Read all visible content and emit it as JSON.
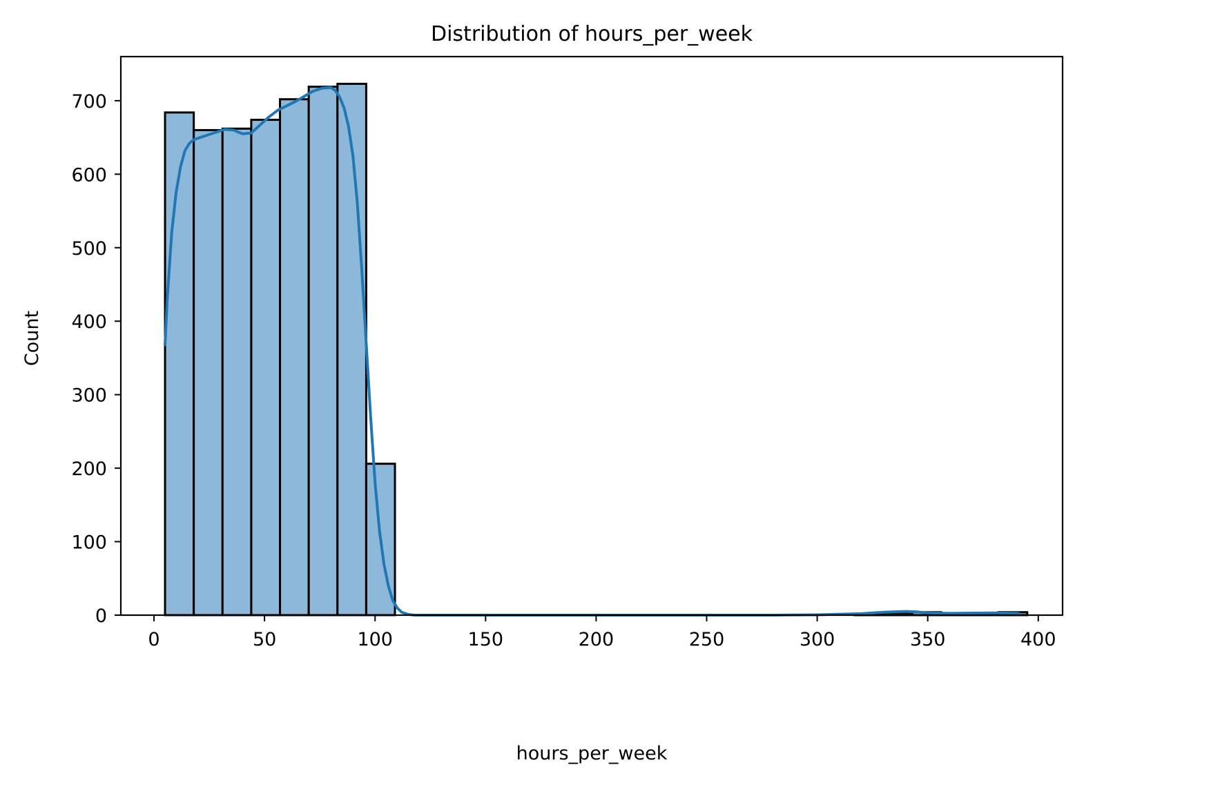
{
  "chart_data": {
    "type": "bar",
    "title": "Distribution of hours_per_week",
    "xlabel": "hours_per_week",
    "ylabel": "Count",
    "xlim": [
      -15,
      411
    ],
    "ylim": [
      0,
      760
    ],
    "xticks": [
      0,
      50,
      100,
      150,
      200,
      250,
      300,
      350,
      400
    ],
    "yticks": [
      0,
      100,
      200,
      300,
      400,
      500,
      600,
      700
    ],
    "grid": false,
    "histogram_bins": [
      {
        "x0": 5,
        "x1": 18,
        "count": 684
      },
      {
        "x0": 18,
        "x1": 31,
        "count": 660
      },
      {
        "x0": 31,
        "x1": 44,
        "count": 662
      },
      {
        "x0": 44,
        "x1": 57,
        "count": 674
      },
      {
        "x0": 57,
        "x1": 70,
        "count": 702
      },
      {
        "x0": 70,
        "x1": 83,
        "count": 719
      },
      {
        "x0": 83,
        "x1": 96,
        "count": 723
      },
      {
        "x0": 96,
        "x1": 109,
        "count": 206
      },
      {
        "x0": 109,
        "x1": 122,
        "count": 0
      },
      {
        "x0": 122,
        "x1": 135,
        "count": 0
      },
      {
        "x0": 135,
        "x1": 148,
        "count": 0
      },
      {
        "x0": 148,
        "x1": 161,
        "count": 0
      },
      {
        "x0": 161,
        "x1": 174,
        "count": 0
      },
      {
        "x0": 174,
        "x1": 187,
        "count": 0
      },
      {
        "x0": 187,
        "x1": 200,
        "count": 0
      },
      {
        "x0": 200,
        "x1": 213,
        "count": 0
      },
      {
        "x0": 213,
        "x1": 226,
        "count": 0
      },
      {
        "x0": 226,
        "x1": 239,
        "count": 0
      },
      {
        "x0": 239,
        "x1": 252,
        "count": 0
      },
      {
        "x0": 252,
        "x1": 265,
        "count": 0
      },
      {
        "x0": 265,
        "x1": 278,
        "count": 0
      },
      {
        "x0": 278,
        "x1": 291,
        "count": 0
      },
      {
        "x0": 291,
        "x1": 304,
        "count": 0
      },
      {
        "x0": 304,
        "x1": 317,
        "count": 0
      },
      {
        "x0": 317,
        "x1": 330,
        "count": 1
      },
      {
        "x0": 330,
        "x1": 343,
        "count": 3
      },
      {
        "x0": 343,
        "x1": 356,
        "count": 4
      },
      {
        "x0": 356,
        "x1": 369,
        "count": 1
      },
      {
        "x0": 369,
        "x1": 382,
        "count": 2
      },
      {
        "x0": 382,
        "x1": 395,
        "count": 4
      }
    ],
    "kde_curve": {
      "x": [
        5,
        6,
        8,
        10,
        12,
        14,
        16,
        18,
        20,
        24,
        28,
        32,
        36,
        40,
        44,
        48,
        52,
        56,
        60,
        64,
        68,
        72,
        76,
        80,
        82,
        84,
        86,
        88,
        90,
        92,
        94,
        96,
        98,
        100,
        102,
        104,
        106,
        108,
        110,
        112,
        115,
        118,
        122,
        130,
        150,
        200,
        250,
        280,
        300,
        320,
        330,
        340,
        345,
        350,
        360,
        370,
        380,
        391
      ],
      "y": [
        368,
        430,
        520,
        575,
        610,
        632,
        642,
        647,
        649,
        653,
        657,
        661,
        660,
        655,
        656,
        667,
        678,
        687,
        693,
        699,
        706,
        713,
        717,
        718,
        714,
        705,
        690,
        665,
        625,
        560,
        470,
        370,
        270,
        180,
        115,
        70,
        40,
        20,
        10,
        4,
        1,
        0,
        0,
        0,
        0,
        0,
        0,
        0,
        0.5,
        2,
        4,
        5,
        4.5,
        3,
        2.5,
        2.8,
        3,
        2.5
      ]
    }
  }
}
